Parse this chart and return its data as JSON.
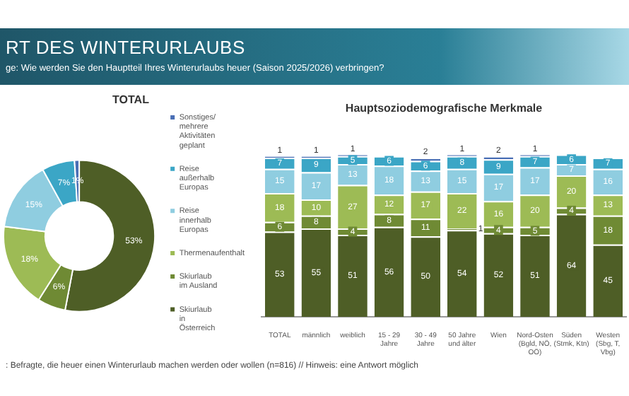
{
  "chart_data": [
    {
      "type": "donut",
      "title": "TOTAL",
      "annotations": [
        "RT DES WINTERURLAUBS",
        "ge: Wie werden Sie den Hauptteil Ihres Winterurlaubs heuer (Saison 2025/2026) verbringen?",
        ": Befragte, die heuer einen Winterurlaub machen werden oder wollen (n=816) // Hinweis: eine Antwort möglich"
      ],
      "categories": [
        "Skiurlaub in Österreich",
        "Skiurlaub im Ausland",
        "Thermenaufenthalt",
        "Reise innerhalb Europas",
        "Reise außerhalb Europas",
        "Sonstiges/ mehrere Aktivitäten geplant"
      ],
      "values": [
        53,
        6,
        18,
        15,
        7,
        1
      ],
      "value_labels": [
        "53%",
        "6%",
        "18%",
        "15%",
        "7%",
        "1%"
      ],
      "colors": [
        "#4e5e26",
        "#6f8a34",
        "#9dbb55",
        "#8fcde0",
        "#3ba6c6",
        "#4a6fb5"
      ],
      "legend": "right"
    },
    {
      "type": "bar",
      "title": "Hauptsoziodemografische Merkmale",
      "stacked": true,
      "data_labels": true,
      "tick_labels": "x",
      "categories": [
        "TOTAL",
        "männlich",
        "weiblich",
        "15 - 29 Jahre",
        "30 - 49 Jahre",
        "50 Jahre und älter",
        "Wien",
        "Nord-Osten (Bgld, NÖ, OÖ)",
        "Süden (Stmk, Ktn)",
        "Westen (Sbg, T, Vbg)"
      ],
      "series": [
        {
          "color": "#4e5e26",
          "values": [
            53,
            55,
            51,
            56,
            50,
            54,
            52,
            51,
            64,
            45
          ]
        },
        {
          "color": "#6f8a34",
          "values": [
            6,
            8,
            4,
            8,
            11,
            1,
            4,
            5,
            4,
            18
          ]
        },
        {
          "color": "#9dbb55",
          "values": [
            18,
            10,
            27,
            12,
            17,
            22,
            16,
            20,
            20,
            13
          ]
        },
        {
          "color": "#8fcde0",
          "values": [
            15,
            17,
            13,
            18,
            13,
            15,
            17,
            17,
            7,
            16
          ]
        },
        {
          "color": "#3ba6c6",
          "values": [
            7,
            9,
            5,
            6,
            6,
            8,
            9,
            7,
            6,
            7
          ]
        },
        {
          "color": "#4a6fb5",
          "values": [
            1,
            1,
            1,
            null,
            2,
            1,
            2,
            1,
            null,
            null
          ]
        }
      ]
    }
  ]
}
